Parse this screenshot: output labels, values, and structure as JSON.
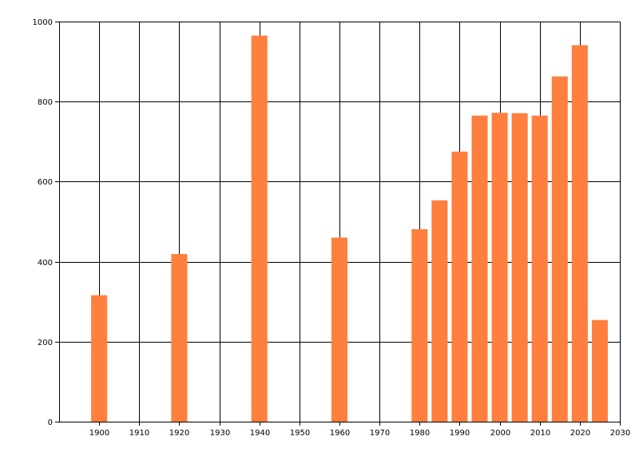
{
  "chart_data": {
    "type": "bar",
    "title": "",
    "xlabel": "",
    "ylabel": "",
    "x": [
      1900,
      1920,
      1940,
      1960,
      1980,
      1985,
      1990,
      1995,
      2000,
      2005,
      2010,
      2015,
      2020,
      2025
    ],
    "values": [
      316,
      419,
      965,
      460,
      481,
      553,
      675,
      765,
      772,
      771,
      765,
      863,
      941,
      254
    ],
    "xlim": [
      1890,
      2030
    ],
    "ylim": [
      0,
      1000
    ],
    "x_ticks": [
      1900,
      1910,
      1920,
      1930,
      1940,
      1950,
      1960,
      1970,
      1980,
      1990,
      2000,
      2010,
      2020,
      2030
    ],
    "y_ticks": [
      0,
      200,
      400,
      600,
      800,
      1000
    ],
    "x_tick_labels": [
      "1900",
      "1910",
      "1920",
      "1930",
      "1940",
      "1950",
      "1960",
      "1970",
      "1980",
      "1990",
      "2000",
      "2010",
      "2020",
      "2030"
    ],
    "y_tick_labels": [
      "0",
      "200",
      "400",
      "600",
      "800",
      "1000"
    ],
    "grid": true,
    "bar_width_years": 4,
    "colors": {
      "bar": "#ff7f3f",
      "grid": "#000000",
      "axis": "#000000",
      "background": "#ffffff"
    }
  }
}
